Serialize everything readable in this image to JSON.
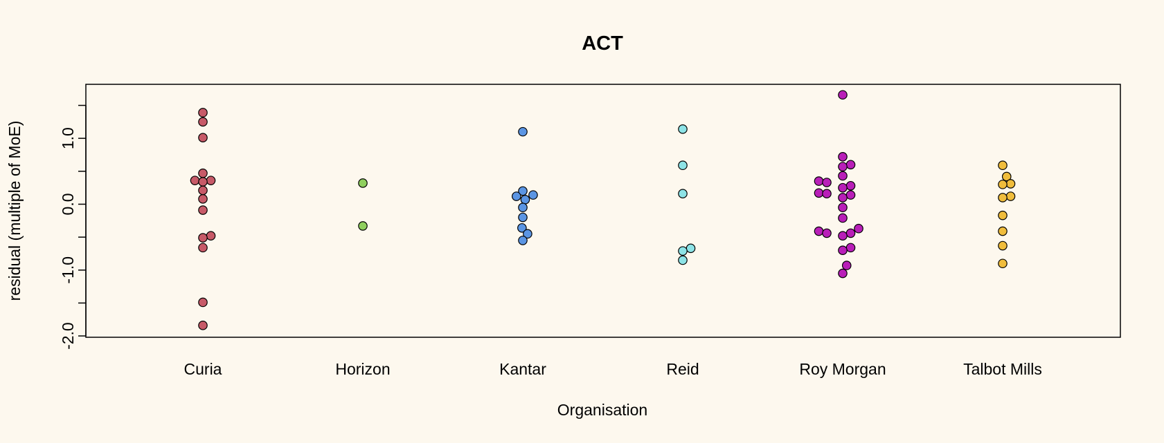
{
  "chart_data": {
    "type": "scatter",
    "title": "ACT",
    "xlabel": "Organisation",
    "ylabel": "residual (multiple of MoE)",
    "categories": [
      "Curia",
      "Horizon",
      "Kantar",
      "Reid",
      "Roy Morgan",
      "Talbot Mills"
    ],
    "yticks": [
      -2.0,
      -1.5,
      -1.0,
      -0.5,
      0.0,
      0.5,
      1.0,
      1.5
    ],
    "ytick_labels": [
      "-2.0",
      "",
      "-1.0",
      "",
      "0.0",
      "",
      "1.0",
      ""
    ],
    "ylim": [
      -2.02,
      1.82
    ],
    "grid": false,
    "colors": {
      "background": "#fdf8ee",
      "Curia": "#c75a68",
      "Horizon": "#8fcf5e",
      "Kantar": "#5b95e3",
      "Reid": "#8de3e6",
      "Roy Morgan": "#b81fb8",
      "Talbot Mills": "#f0bd3c"
    },
    "series": [
      {
        "category": "Curia",
        "points": [
          {
            "y": 1.39,
            "off": 0
          },
          {
            "y": 1.25,
            "off": 0
          },
          {
            "y": 1.01,
            "off": 0
          },
          {
            "y": 0.47,
            "off": 0
          },
          {
            "y": 0.36,
            "off": -1
          },
          {
            "y": 0.36,
            "off": 1
          },
          {
            "y": 0.34,
            "off": 0
          },
          {
            "y": 0.21,
            "off": 0
          },
          {
            "y": 0.08,
            "off": 0
          },
          {
            "y": -0.09,
            "off": 0
          },
          {
            "y": -0.48,
            "off": 1
          },
          {
            "y": -0.51,
            "off": 0
          },
          {
            "y": -0.66,
            "off": 0
          },
          {
            "y": -1.49,
            "off": 0
          },
          {
            "y": -1.84,
            "off": 0
          }
        ]
      },
      {
        "category": "Horizon",
        "points": [
          {
            "y": 0.32,
            "off": 0
          },
          {
            "y": -0.33,
            "off": 0
          }
        ]
      },
      {
        "category": "Kantar",
        "points": [
          {
            "y": 1.1,
            "off": 0
          },
          {
            "y": 0.2,
            "off": 0
          },
          {
            "y": 0.14,
            "off": 1.3
          },
          {
            "y": 0.12,
            "off": -0.8
          },
          {
            "y": 0.07,
            "off": 0.3
          },
          {
            "y": -0.05,
            "off": 0
          },
          {
            "y": -0.2,
            "off": 0
          },
          {
            "y": -0.36,
            "off": -0.1
          },
          {
            "y": -0.45,
            "off": 0.6
          },
          {
            "y": -0.55,
            "off": 0
          }
        ]
      },
      {
        "category": "Reid",
        "points": [
          {
            "y": 1.14,
            "off": 0
          },
          {
            "y": 0.59,
            "off": 0
          },
          {
            "y": 0.16,
            "off": 0
          },
          {
            "y": -0.67,
            "off": 1
          },
          {
            "y": -0.71,
            "off": 0
          },
          {
            "y": -0.85,
            "off": 0
          }
        ]
      },
      {
        "category": "Roy Morgan",
        "points": [
          {
            "y": 1.66,
            "off": 0
          },
          {
            "y": 0.72,
            "off": 0
          },
          {
            "y": 0.6,
            "off": 1
          },
          {
            "y": 0.57,
            "off": 0
          },
          {
            "y": 0.43,
            "off": 0
          },
          {
            "y": 0.35,
            "off": -3
          },
          {
            "y": 0.33,
            "off": -2
          },
          {
            "y": 0.28,
            "off": 1
          },
          {
            "y": 0.25,
            "off": 0
          },
          {
            "y": 0.17,
            "off": -3
          },
          {
            "y": 0.16,
            "off": -2
          },
          {
            "y": 0.14,
            "off": 1
          },
          {
            "y": 0.1,
            "off": 0
          },
          {
            "y": -0.05,
            "off": 0
          },
          {
            "y": -0.21,
            "off": 0
          },
          {
            "y": -0.37,
            "off": 2
          },
          {
            "y": -0.41,
            "off": -3
          },
          {
            "y": -0.44,
            "off": -2
          },
          {
            "y": -0.44,
            "off": 1
          },
          {
            "y": -0.48,
            "off": 0
          },
          {
            "y": -0.66,
            "off": 1
          },
          {
            "y": -0.7,
            "off": 0
          },
          {
            "y": -0.93,
            "off": 0.5
          },
          {
            "y": -1.05,
            "off": 0
          }
        ]
      },
      {
        "category": "Talbot Mills",
        "points": [
          {
            "y": 0.59,
            "off": 0
          },
          {
            "y": 0.42,
            "off": 0.5
          },
          {
            "y": 0.31,
            "off": 1
          },
          {
            "y": 0.3,
            "off": 0
          },
          {
            "y": 0.12,
            "off": 1
          },
          {
            "y": 0.1,
            "off": 0
          },
          {
            "y": -0.17,
            "off": 0
          },
          {
            "y": -0.41,
            "off": 0
          },
          {
            "y": -0.63,
            "off": 0
          },
          {
            "y": -0.9,
            "off": 0
          }
        ]
      }
    ]
  }
}
